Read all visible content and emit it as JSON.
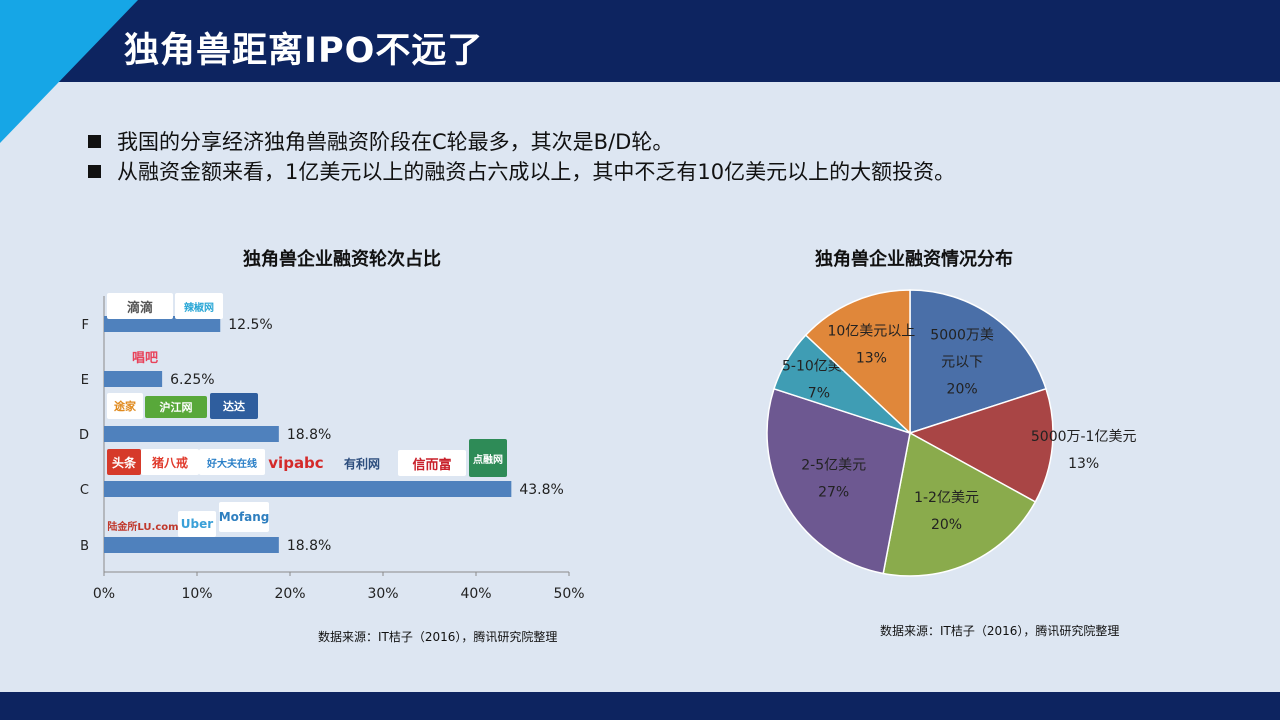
{
  "slide": {
    "title": "独角兽距离IPO不远了",
    "bullets": [
      "我国的分享经济独角兽融资阶段在C轮最多，其次是B/D轮。",
      "从融资金额来看，1亿美元以上的融资占六成以上，其中不乏有10亿美元以上的大额投资。"
    ]
  },
  "bar_chart": {
    "title": "独角兽企业融资轮次占比",
    "source": "数据来源：IT桔子（2016），腾讯研究院整理",
    "logos": {
      "F": [
        "滴滴",
        "辣椒网"
      ],
      "E": [
        "唱吧"
      ],
      "D": [
        "途家",
        "沪江网",
        "达达"
      ],
      "C": [
        "头条",
        "猪八戒",
        "好大夫在线",
        "vipabc",
        "有利网",
        "信而富",
        "点融网"
      ],
      "B": [
        "陆金所LU.com",
        "Uber",
        "Mofang"
      ]
    }
  },
  "pie_chart": {
    "title": "独角兽企业融资情况分布",
    "source": "数据来源：IT桔子（2016），腾讯研究院整理"
  },
  "chart_data": [
    {
      "type": "bar",
      "orientation": "horizontal",
      "title": "独角兽企业融资轮次占比",
      "categories": [
        "F",
        "E",
        "D",
        "C",
        "B"
      ],
      "values": [
        12.5,
        6.25,
        18.8,
        43.8,
        18.8
      ],
      "data_labels": [
        "12.5%",
        "6.25%",
        "18.8%",
        "43.8%",
        "18.8%"
      ],
      "xlim": [
        0,
        50
      ],
      "x_ticks": [
        "0%",
        "10%",
        "20%",
        "30%",
        "40%",
        "50%"
      ],
      "grid": false,
      "color": "#4f81bd"
    },
    {
      "type": "pie",
      "title": "独角兽企业融资情况分布",
      "slices": [
        {
          "label": "5000万美元以下",
          "label_lines": [
            "5000万美",
            "元以下",
            "20%"
          ],
          "value": 20,
          "color": "#4a6fa8"
        },
        {
          "label": "5000万-1亿美元",
          "label_lines": [
            "5000万-1亿美元",
            "13%"
          ],
          "value": 13,
          "color": "#a94545"
        },
        {
          "label": "1-2亿美元",
          "label_lines": [
            "1-2亿美元",
            "20%"
          ],
          "value": 20,
          "color": "#8aab4c"
        },
        {
          "label": "2-5亿美元",
          "label_lines": [
            "2-5亿美元",
            "27%"
          ],
          "value": 27,
          "color": "#6d5891"
        },
        {
          "label": "5-10亿美元",
          "label_lines": [
            "5-10亿美元",
            "7%"
          ],
          "value": 7,
          "color": "#3f9db4"
        },
        {
          "label": "10亿美元以上",
          "label_lines": [
            "10亿美元以上",
            "13%"
          ],
          "value": 13,
          "color": "#e0873a"
        }
      ],
      "legend": false
    }
  ]
}
